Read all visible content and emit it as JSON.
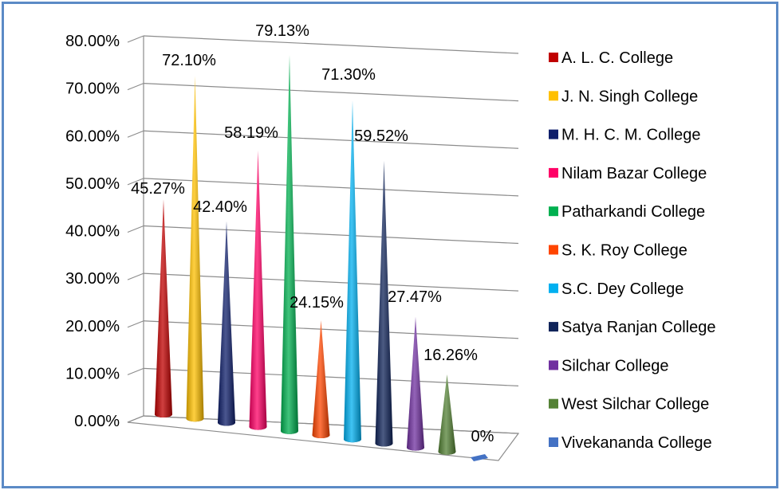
{
  "chart_data": {
    "type": "bar",
    "title": "",
    "xlabel": "",
    "ylabel": "",
    "ylim": [
      0,
      80
    ],
    "y_ticks": [
      "0.00%",
      "10.00%",
      "20.00%",
      "30.00%",
      "40.00%",
      "50.00%",
      "60.00%",
      "70.00%",
      "80.00%"
    ],
    "legend_position": "right",
    "grid": true,
    "style": "3d-cone",
    "categories": [
      "A. L. C. College",
      "J. N. Singh College",
      "M. H. C. M. College",
      "Nilam Bazar College",
      "Patharkandi College",
      "S. K. Roy College",
      "S.C. Dey College",
      "Satya Ranjan College",
      "Silchar College",
      "West Silchar College",
      "Vivekananda College"
    ],
    "values": [
      45.27,
      72.1,
      42.4,
      58.19,
      79.13,
      24.15,
      71.3,
      59.52,
      27.47,
      16.26,
      0
    ],
    "data_labels": [
      "45.27%",
      "72.10%",
      "42.40%",
      "58.19%",
      "79.13%",
      "24.15%",
      "71.30%",
      "59.52%",
      "27.47%",
      "16.26%",
      "0%"
    ],
    "colors": [
      "#c00000",
      "#ffc000",
      "#0f1f6b",
      "#ff0066",
      "#00b050",
      "#ff4500",
      "#00b0f0",
      "#10245a",
      "#7030a0",
      "#548235",
      "#4472c4"
    ]
  }
}
